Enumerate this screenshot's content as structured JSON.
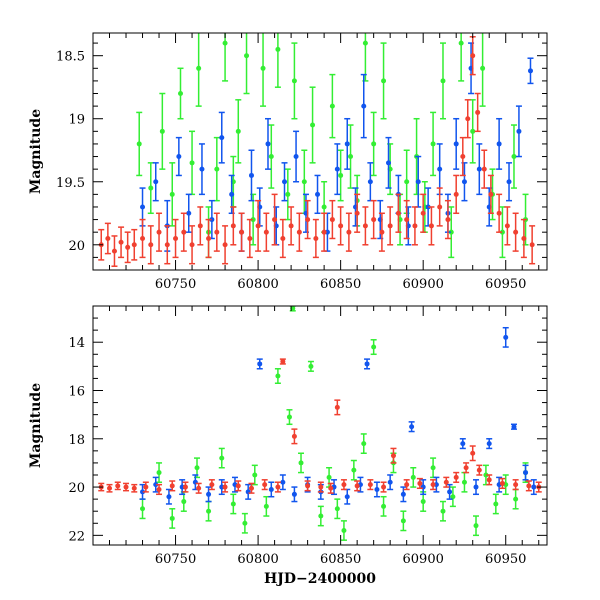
{
  "chart_data": [
    {
      "type": "scatter",
      "title": "",
      "xlabel": "",
      "ylabel": "Magnitude",
      "xlim": [
        60700,
        60975
      ],
      "ylim": [
        20.2,
        18.32
      ],
      "y_inverted": true,
      "xticks": [
        60750,
        60800,
        60850,
        60900,
        60950
      ],
      "xtick_labels": [
        "60750",
        "60800",
        "60850",
        "60900",
        "60950"
      ],
      "yticks": [
        18.5,
        19,
        19.5,
        20
      ],
      "ytick_labels": [
        "18.5",
        "19",
        "19.5",
        "20"
      ],
      "series": [
        {
          "name": "green",
          "color": "#33ee33",
          "x": [
            60728,
            60735,
            60742,
            60748,
            60753,
            60760,
            60764,
            60770,
            60775,
            60780,
            60785,
            60788,
            60793,
            60797,
            60803,
            60808,
            60812,
            60818,
            60822,
            60828,
            60833,
            60840,
            60845,
            60850,
            60856,
            60860,
            60865,
            60870,
            60876,
            60880,
            60886,
            60890,
            60896,
            60901,
            60906,
            60912,
            60917,
            60923,
            60930,
            60936,
            60942,
            60948,
            60955,
            60962
          ],
          "y": [
            19.2,
            19.55,
            19.1,
            19.6,
            18.8,
            19.35,
            18.6,
            19.9,
            19.4,
            18.4,
            19.5,
            19.1,
            18.5,
            19.8,
            18.6,
            19.3,
            18.45,
            19.6,
            18.7,
            19.5,
            19.05,
            19.7,
            18.9,
            19.45,
            19.3,
            19.65,
            18.4,
            19.2,
            18.7,
            19.4,
            19.8,
            19.5,
            19.3,
            19.7,
            19.2,
            18.7,
            19.9,
            18.4,
            19.1,
            18.6,
            19.6,
            19.9,
            19.3,
            19.8
          ],
          "err": [
            0.25,
            0.2,
            0.3,
            0.25,
            0.2,
            0.25,
            0.3,
            0.2,
            0.25,
            0.3,
            0.2,
            0.25,
            0.3,
            0.2,
            0.3,
            0.25,
            0.3,
            0.2,
            0.3,
            0.25,
            0.3,
            0.2,
            0.25,
            0.2,
            0.25,
            0.2,
            0.3,
            0.25,
            0.3,
            0.2,
            0.2,
            0.25,
            0.3,
            0.2,
            0.25,
            0.3,
            0.2,
            0.3,
            0.25,
            0.3,
            0.2,
            0.2,
            0.25,
            0.2
          ]
        },
        {
          "name": "blue",
          "color": "#1155ee",
          "x": [
            60730,
            60738,
            60745,
            60752,
            60758,
            60766,
            60772,
            60778,
            60784,
            60790,
            60796,
            60801,
            60806,
            60811,
            60816,
            60823,
            60829,
            60836,
            60842,
            60848,
            60854,
            60859,
            60864,
            60868,
            60874,
            60879,
            60885,
            60891,
            60897,
            60903,
            60910,
            60915,
            60920,
            60925,
            60929,
            60934,
            60940,
            60946,
            60952,
            60958,
            60965
          ],
          "y": [
            19.7,
            19.5,
            19.85,
            19.3,
            19.75,
            19.4,
            19.8,
            19.15,
            19.6,
            19.9,
            19.45,
            19.7,
            19.2,
            19.85,
            19.5,
            19.3,
            19.75,
            19.6,
            19.9,
            19.4,
            19.2,
            19.7,
            18.9,
            19.5,
            19.8,
            19.35,
            19.6,
            19.85,
            19.5,
            19.7,
            19.4,
            19.75,
            19.2,
            19.5,
            18.6,
            19.4,
            19.7,
            19.2,
            19.5,
            19.1,
            18.62
          ],
          "err": [
            0.15,
            0.15,
            0.2,
            0.15,
            0.15,
            0.2,
            0.15,
            0.2,
            0.15,
            0.15,
            0.2,
            0.15,
            0.2,
            0.15,
            0.15,
            0.2,
            0.15,
            0.15,
            0.15,
            0.2,
            0.2,
            0.15,
            0.25,
            0.15,
            0.15,
            0.2,
            0.15,
            0.15,
            0.2,
            0.15,
            0.2,
            0.15,
            0.2,
            0.15,
            0.2,
            0.2,
            0.15,
            0.2,
            0.15,
            0.2,
            0.1
          ]
        },
        {
          "name": "red",
          "color": "#f04030",
          "x": [
            60705,
            60709,
            60713,
            60717,
            60721,
            60725,
            60730,
            60735,
            60740,
            60745,
            60750,
            60755,
            60760,
            60765,
            60770,
            60775,
            60780,
            60785,
            60790,
            60795,
            60800,
            60805,
            60810,
            60815,
            60820,
            60825,
            60830,
            60835,
            60840,
            60845,
            60850,
            60855,
            60860,
            60865,
            60870,
            60875,
            60880,
            60885,
            60890,
            60895,
            60900,
            60905,
            60910,
            60915,
            60920,
            60924,
            60927,
            60930,
            60933,
            60937,
            60941,
            60946,
            60951,
            60956,
            60961,
            60966
          ],
          "y": [
            20.0,
            19.95,
            20.05,
            19.98,
            20.02,
            20.0,
            19.95,
            20.0,
            19.9,
            20.0,
            19.95,
            19.9,
            20.0,
            19.85,
            19.95,
            19.9,
            20.0,
            19.85,
            19.9,
            19.95,
            19.85,
            19.9,
            19.8,
            19.95,
            19.85,
            19.9,
            19.8,
            19.95,
            19.9,
            19.8,
            19.85,
            19.9,
            19.75,
            19.85,
            19.8,
            19.9,
            19.85,
            19.75,
            19.8,
            19.85,
            19.75,
            19.85,
            19.7,
            19.8,
            19.6,
            19.3,
            19.0,
            18.5,
            18.95,
            19.4,
            19.6,
            19.75,
            19.85,
            19.9,
            19.95,
            20.0
          ],
          "err": [
            0.12,
            0.12,
            0.12,
            0.12,
            0.12,
            0.12,
            0.15,
            0.15,
            0.15,
            0.15,
            0.15,
            0.15,
            0.15,
            0.15,
            0.15,
            0.15,
            0.15,
            0.15,
            0.15,
            0.15,
            0.2,
            0.15,
            0.2,
            0.15,
            0.15,
            0.15,
            0.15,
            0.15,
            0.15,
            0.15,
            0.15,
            0.15,
            0.15,
            0.15,
            0.15,
            0.15,
            0.15,
            0.15,
            0.15,
            0.15,
            0.15,
            0.15,
            0.15,
            0.15,
            0.15,
            0.15,
            0.15,
            0.15,
            0.15,
            0.15,
            0.15,
            0.15,
            0.15,
            0.15,
            0.15,
            0.15
          ]
        }
      ]
    },
    {
      "type": "scatter",
      "title": "",
      "xlabel": "HJD−2400000",
      "ylabel": "Magnitude",
      "xlim": [
        60700,
        60975
      ],
      "ylim": [
        22.4,
        12.5
      ],
      "y_inverted": true,
      "xticks": [
        60750,
        60800,
        60850,
        60900,
        60950
      ],
      "xtick_labels": [
        "60750",
        "60800",
        "60850",
        "60900",
        "60950"
      ],
      "yticks": [
        14,
        16,
        18,
        20,
        22
      ],
      "ytick_labels": [
        "14",
        "16",
        "18",
        "20",
        "22"
      ],
      "series": [
        {
          "name": "green",
          "color": "#33ee33",
          "x": [
            60730,
            60740,
            60748,
            60755,
            60763,
            60770,
            60778,
            60785,
            60792,
            60798,
            60805,
            60812,
            60819,
            60821,
            60826,
            60832,
            60838,
            60843,
            60848,
            60852,
            60858,
            60864,
            60870,
            60876,
            60882,
            60888,
            60894,
            60900,
            60906,
            60912,
            60918,
            60925,
            60932,
            60938,
            60944,
            60950,
            60956,
            60962
          ],
          "y": [
            20.9,
            19.4,
            21.3,
            20.6,
            19.2,
            21.0,
            18.8,
            20.7,
            21.5,
            19.5,
            20.8,
            15.4,
            17.1,
            12.6,
            19.0,
            15.0,
            21.2,
            19.6,
            20.9,
            21.8,
            19.3,
            18.2,
            14.2,
            20.8,
            19.0,
            21.4,
            19.6,
            20.6,
            19.2,
            21.0,
            20.4,
            19.8,
            21.6,
            19.5,
            20.7,
            19.9,
            20.5,
            19.4
          ],
          "err": [
            0.4,
            0.4,
            0.4,
            0.4,
            0.4,
            0.4,
            0.4,
            0.4,
            0.4,
            0.4,
            0.4,
            0.3,
            0.3,
            0.1,
            0.4,
            0.2,
            0.4,
            0.4,
            0.4,
            0.4,
            0.4,
            0.4,
            0.3,
            0.4,
            0.4,
            0.4,
            0.4,
            0.4,
            0.4,
            0.4,
            0.4,
            0.4,
            0.4,
            0.4,
            0.4,
            0.4,
            0.4,
            0.4
          ]
        },
        {
          "name": "blue",
          "color": "#1155ee",
          "x": [
            60730,
            60738,
            60746,
            60754,
            60762,
            60770,
            60778,
            60786,
            60794,
            60801,
            60808,
            60815,
            60822,
            60830,
            60838,
            60846,
            60854,
            60862,
            60866,
            60872,
            60880,
            60888,
            60893,
            60900,
            60908,
            60916,
            60924,
            60932,
            60940,
            60946,
            60950,
            60955,
            60962,
            60967
          ],
          "y": [
            20.2,
            19.9,
            20.4,
            20.0,
            19.8,
            20.3,
            20.0,
            19.9,
            20.2,
            14.9,
            20.1,
            19.8,
            20.3,
            19.9,
            20.2,
            20.0,
            20.4,
            19.9,
            14.9,
            20.1,
            19.8,
            20.3,
            17.5,
            20.0,
            19.9,
            20.2,
            18.2,
            20.0,
            18.2,
            19.9,
            13.8,
            17.5,
            19.4,
            20.0
          ],
          "err": [
            0.3,
            0.3,
            0.3,
            0.3,
            0.3,
            0.3,
            0.3,
            0.3,
            0.3,
            0.2,
            0.3,
            0.3,
            0.3,
            0.3,
            0.3,
            0.3,
            0.3,
            0.3,
            0.2,
            0.3,
            0.3,
            0.3,
            0.2,
            0.3,
            0.3,
            0.3,
            0.2,
            0.3,
            0.2,
            0.3,
            0.4,
            0.1,
            0.3,
            0.3
          ]
        },
        {
          "name": "red",
          "color": "#f04030",
          "x": [
            60705,
            60710,
            60715,
            60720,
            60725,
            60732,
            60740,
            60748,
            60756,
            60764,
            60772,
            60780,
            60788,
            60796,
            60804,
            60812,
            60815,
            60822,
            60830,
            60838,
            60844,
            60848,
            60852,
            60860,
            60868,
            60876,
            60882,
            60890,
            60898,
            60906,
            60914,
            60920,
            60926,
            60930,
            60934,
            60940,
            60948,
            60956,
            60964,
            60970
          ],
          "y": [
            20.0,
            20.05,
            19.95,
            20.0,
            20.05,
            20.0,
            20.1,
            19.95,
            20.0,
            20.05,
            19.9,
            20.0,
            19.95,
            20.05,
            19.9,
            20.0,
            14.8,
            17.9,
            19.95,
            20.0,
            20.05,
            16.7,
            19.9,
            19.95,
            19.9,
            20.0,
            18.7,
            19.9,
            19.85,
            19.9,
            19.8,
            19.6,
            19.2,
            18.6,
            19.3,
            19.7,
            19.85,
            19.9,
            19.95,
            20.0
          ],
          "err": [
            0.15,
            0.15,
            0.15,
            0.15,
            0.15,
            0.2,
            0.2,
            0.2,
            0.2,
            0.2,
            0.2,
            0.2,
            0.2,
            0.2,
            0.2,
            0.2,
            0.1,
            0.3,
            0.2,
            0.2,
            0.2,
            0.3,
            0.2,
            0.2,
            0.2,
            0.2,
            0.3,
            0.2,
            0.2,
            0.2,
            0.2,
            0.2,
            0.2,
            0.3,
            0.2,
            0.2,
            0.2,
            0.2,
            0.2,
            0.2
          ]
        }
      ]
    }
  ]
}
